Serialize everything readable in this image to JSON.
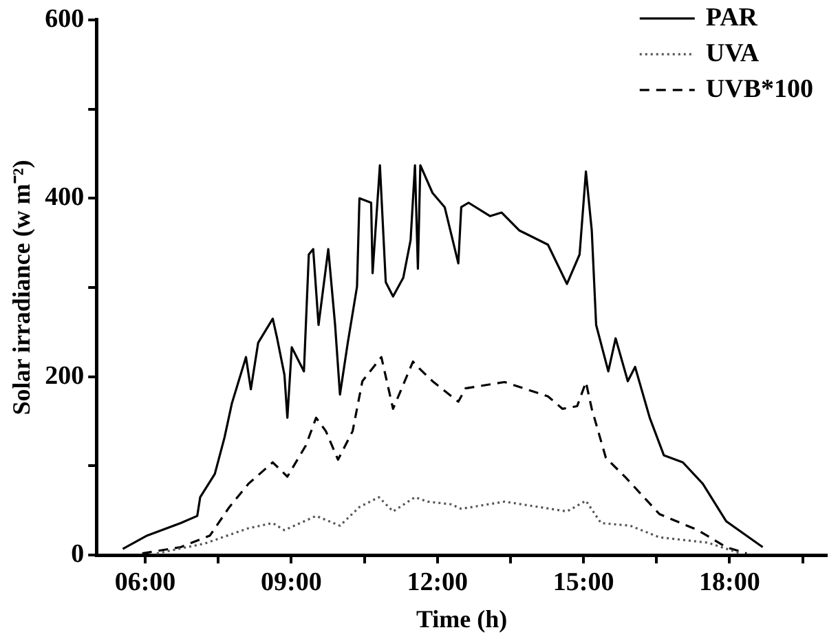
{
  "chart_data": {
    "type": "line",
    "xlabel": "Time (h)",
    "ylabel": "Solar irradiance (w m⁻²)",
    "xlim": [
      5,
      20
    ],
    "xticks": [
      {
        "value": 6,
        "label": "06:00"
      },
      {
        "value": 7.5,
        "label": null
      },
      {
        "value": 9,
        "label": "09:00"
      },
      {
        "value": 10.5,
        "label": null
      },
      {
        "value": 12,
        "label": "12:00"
      },
      {
        "value": 13.5,
        "label": null
      },
      {
        "value": 15,
        "label": "15:00"
      },
      {
        "value": 16.5,
        "label": null
      },
      {
        "value": 18,
        "label": "18:00"
      },
      {
        "value": 19.5,
        "label": null
      }
    ],
    "ylim": [
      0,
      600
    ],
    "yticks": [
      0,
      {
        "value": 100,
        "label": null
      },
      200,
      {
        "value": 300,
        "label": null
      },
      400,
      {
        "value": 500,
        "label": null
      },
      600
    ],
    "grid": false,
    "legend": "top right",
    "marker": "none",
    "series": [
      {
        "name": "PAR",
        "color": "#000000",
        "line_style": "solid",
        "x": [
          5.54,
          6.04,
          6.73,
          7.07,
          7.13,
          7.43,
          7.63,
          7.78,
          8.07,
          8.17,
          8.32,
          8.62,
          8.71,
          8.86,
          8.92,
          9.01,
          9.26,
          9.36,
          9.45,
          9.56,
          9.76,
          9.9,
          10.0,
          10.16,
          10.35,
          10.4,
          10.64,
          10.67,
          10.82,
          10.94,
          11.09,
          11.3,
          11.45,
          11.54,
          11.6,
          11.65,
          11.9,
          12.15,
          12.43,
          12.49,
          12.64,
          13.08,
          13.32,
          13.68,
          14.27,
          14.66,
          14.92,
          15.05,
          15.17,
          15.26,
          15.51,
          15.66,
          15.91,
          16.06,
          16.36,
          16.65,
          17.04,
          17.45,
          17.93,
          18.68
        ],
        "values": [
          7,
          22,
          36,
          44,
          65,
          91,
          132,
          170,
          222,
          186,
          238,
          265,
          243,
          202,
          154,
          233,
          206,
          337,
          343,
          258,
          343,
          258,
          180,
          238,
          301,
          400,
          395,
          316,
          437,
          306,
          290,
          311,
          353,
          437,
          321,
          437,
          406,
          390,
          327,
          390,
          395,
          380,
          384,
          364,
          348,
          304,
          337,
          430,
          364,
          258,
          206,
          243,
          195,
          211,
          154,
          112,
          104,
          80,
          38,
          9
        ]
      },
      {
        "name": "UVA",
        "color": "#555555",
        "line_style": "dotted",
        "x": [
          6.24,
          7.22,
          8.11,
          8.62,
          8.86,
          9.51,
          10.0,
          10.4,
          10.8,
          11.09,
          11.54,
          11.8,
          12.28,
          12.49,
          13.38,
          14.66,
          15.05,
          15.36,
          15.96,
          16.56,
          17.55,
          18.23
        ],
        "values": [
          2,
          13,
          30,
          36,
          28,
          44,
          33,
          54,
          65,
          49,
          65,
          60,
          57,
          52,
          60,
          49,
          61,
          36,
          33,
          20,
          14,
          2
        ]
      },
      {
        "name": "UVB*100",
        "color": "#000000",
        "line_style": "dashed",
        "x": [
          5.94,
          6.73,
          7.33,
          7.73,
          8.12,
          8.62,
          8.92,
          9.3,
          9.51,
          9.71,
          9.96,
          10.26,
          10.46,
          10.85,
          11.09,
          11.5,
          11.54,
          11.9,
          12.43,
          12.58,
          13.38,
          14.27,
          14.57,
          14.87,
          15.05,
          15.17,
          15.46,
          15.85,
          16.56,
          17.35,
          17.93,
          18.35
        ],
        "values": [
          2,
          9,
          22,
          54,
          80,
          104,
          88,
          123,
          154,
          139,
          107,
          139,
          195,
          222,
          164,
          217,
          214,
          195,
          172,
          187,
          194,
          178,
          164,
          167,
          194,
          164,
          109,
          88,
          46,
          28,
          9,
          2
        ]
      }
    ]
  }
}
